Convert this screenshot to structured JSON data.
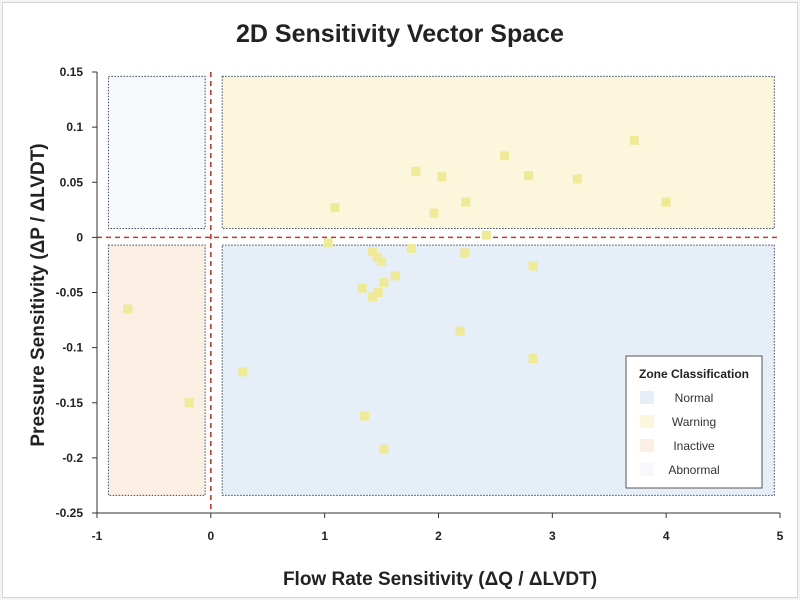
{
  "chart_data": {
    "type": "scatter",
    "title": "2D Sensitivity Vector Space",
    "xlabel": "Flow Rate Sensitivity (ΔQ / ΔLVDT)",
    "ylabel": "Pressure Sensitivity (ΔP / ΔLVDT)",
    "xlim": [
      -1,
      5
    ],
    "ylim": [
      -0.25,
      0.15
    ],
    "x_ticks": [
      "-1",
      "0",
      "1",
      "2",
      "3",
      "4",
      "5"
    ],
    "x_tick_values": [
      -1,
      0,
      1,
      2,
      3,
      4,
      5
    ],
    "y_ticks": [
      "0.15",
      "0.1",
      "0.05",
      "0",
      "-0.05",
      "-0.1",
      "-0.15",
      "-0.2",
      "-0.25"
    ],
    "y_tick_values": [
      0.15,
      0.1,
      0.05,
      0,
      -0.05,
      -0.1,
      -0.15,
      -0.2,
      -0.25
    ],
    "grid": false,
    "point_color": "#eeea98",
    "reference_lines": {
      "x": 0,
      "y": 0,
      "color": "#c0392b",
      "style": "dashed"
    },
    "zones": [
      {
        "name": "Normal",
        "color": "#e6eef8",
        "x": [
          0.1,
          4.95
        ],
        "y": [
          -0.234,
          -0.007
        ]
      },
      {
        "name": "Warning",
        "color": "#fbf6dc",
        "x": [
          0.1,
          4.95
        ],
        "y": [
          0.008,
          0.146
        ]
      },
      {
        "name": "Inactive",
        "color": "#fbeee2",
        "x": [
          -0.9,
          -0.05
        ],
        "y": [
          -0.234,
          -0.007
        ]
      },
      {
        "name": "Abnormal",
        "color": "#f6f8fb",
        "x": [
          -0.9,
          -0.05
        ],
        "y": [
          0.008,
          0.146
        ]
      }
    ],
    "legend": {
      "title": "Zone Classification",
      "position": "bottom-right",
      "entries": [
        "Normal",
        "Warning",
        "Inactive",
        "Abnormal"
      ]
    },
    "points": [
      {
        "x": 1.09,
        "y": 0.027
      },
      {
        "x": 1.8,
        "y": 0.06
      },
      {
        "x": 2.03,
        "y": 0.055
      },
      {
        "x": 1.96,
        "y": 0.022
      },
      {
        "x": 2.24,
        "y": 0.032
      },
      {
        "x": 2.58,
        "y": 0.074
      },
      {
        "x": 2.79,
        "y": 0.056
      },
      {
        "x": 3.22,
        "y": 0.053
      },
      {
        "x": 3.72,
        "y": 0.088
      },
      {
        "x": 4.0,
        "y": 0.032
      },
      {
        "x": 2.42,
        "y": 0.002
      },
      {
        "x": 1.03,
        "y": -0.005
      },
      {
        "x": 1.42,
        "y": -0.013
      },
      {
        "x": 1.46,
        "y": -0.018
      },
      {
        "x": 1.5,
        "y": -0.022
      },
      {
        "x": 1.76,
        "y": -0.01
      },
      {
        "x": 2.23,
        "y": -0.014
      },
      {
        "x": 2.83,
        "y": -0.026
      },
      {
        "x": 1.62,
        "y": -0.035
      },
      {
        "x": 1.52,
        "y": -0.041
      },
      {
        "x": 1.33,
        "y": -0.046
      },
      {
        "x": 1.47,
        "y": -0.05
      },
      {
        "x": 1.42,
        "y": -0.054
      },
      {
        "x": 2.19,
        "y": -0.085
      },
      {
        "x": 2.83,
        "y": -0.11
      },
      {
        "x": 0.28,
        "y": -0.122
      },
      {
        "x": 1.35,
        "y": -0.162
      },
      {
        "x": 1.52,
        "y": -0.192
      },
      {
        "x": -0.73,
        "y": -0.065
      },
      {
        "x": -0.19,
        "y": -0.15
      }
    ]
  }
}
